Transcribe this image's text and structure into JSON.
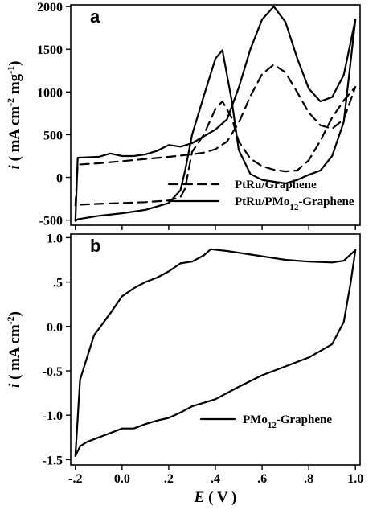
{
  "chart_data": [
    {
      "type": "line",
      "panel_label": "a",
      "xlim": [
        -0.22,
        1.02
      ],
      "ylim": [
        -560,
        2020
      ],
      "yticks": [
        -500,
        0,
        500,
        1000,
        1500,
        2000
      ],
      "ytick_labels": [
        "-500",
        "0",
        "500",
        "1000",
        "1500",
        "2000"
      ],
      "ylabel": {
        "prefix": "i",
        "rest": " ( mA cm",
        "sup1": "-2",
        "mid": " mg",
        "sup2": "-1",
        "end": ")"
      },
      "series": [
        {
          "name": "PtRu/Graphene",
          "style": "dashed",
          "x": [
            -0.2,
            -0.19,
            -0.1,
            0.0,
            0.1,
            0.2,
            0.3,
            0.35,
            0.4,
            0.45,
            0.5,
            0.55,
            0.6,
            0.65,
            0.7,
            0.75,
            0.8,
            0.85,
            0.9,
            0.95,
            1.0,
            1.0,
            0.95,
            0.9,
            0.85,
            0.8,
            0.75,
            0.7,
            0.65,
            0.6,
            0.55,
            0.5,
            0.47,
            0.43,
            0.4,
            0.35,
            0.3,
            0.27,
            0.25,
            0.2,
            0.1,
            0.0,
            -0.1,
            -0.19,
            -0.2
          ],
          "y": [
            -330,
            150,
            165,
            190,
            215,
            240,
            270,
            290,
            330,
            420,
            640,
            950,
            1210,
            1320,
            1230,
            1000,
            760,
            610,
            570,
            680,
            1060,
            1060,
            900,
            700,
            430,
            200,
            80,
            70,
            90,
            130,
            220,
            420,
            700,
            890,
            800,
            500,
            300,
            -130,
            -230,
            -270,
            -290,
            -300,
            -310,
            -320,
            -330
          ]
        },
        {
          "name": "PtRu/PMo12-Graphene",
          "style": "solid",
          "x": [
            -0.2,
            -0.19,
            -0.1,
            -0.05,
            0.0,
            0.05,
            0.1,
            0.15,
            0.2,
            0.25,
            0.3,
            0.35,
            0.4,
            0.45,
            0.5,
            0.55,
            0.6,
            0.65,
            0.7,
            0.75,
            0.8,
            0.85,
            0.9,
            0.95,
            1.0,
            1.0,
            0.95,
            0.9,
            0.85,
            0.8,
            0.75,
            0.7,
            0.6,
            0.55,
            0.5,
            0.47,
            0.43,
            0.4,
            0.35,
            0.3,
            0.27,
            0.25,
            0.2,
            0.1,
            0.0,
            -0.1,
            -0.19,
            -0.2
          ],
          "y": [
            -510,
            230,
            240,
            280,
            250,
            250,
            270,
            310,
            380,
            360,
            400,
            480,
            560,
            680,
            1050,
            1500,
            1850,
            2000,
            1820,
            1400,
            1040,
            890,
            940,
            1200,
            1850,
            1850,
            650,
            250,
            80,
            30,
            -30,
            -70,
            -30,
            40,
            320,
            900,
            1490,
            1390,
            950,
            500,
            80,
            -150,
            -300,
            -380,
            -420,
            -450,
            -490,
            -510
          ]
        }
      ],
      "legend": {
        "placement": "bottom-right",
        "entries": [
          {
            "label_main": "PtRu/Graphene",
            "style": "dashed"
          },
          {
            "label_main": "PtRu/PMo",
            "label_sub": "12",
            "label_after": "-Graphene",
            "style": "solid"
          }
        ]
      }
    },
    {
      "type": "line",
      "panel_label": "b",
      "xlim": [
        -0.22,
        1.02
      ],
      "ylim": [
        -1.56,
        1.04
      ],
      "xticks": [
        -0.2,
        0.0,
        0.2,
        0.4,
        0.6,
        0.8,
        1.0
      ],
      "xtick_labels": [
        "-.2",
        "0.0",
        ".2",
        ".4",
        ".6",
        ".8",
        "1.0"
      ],
      "yticks": [
        -1.5,
        -1.0,
        -0.5,
        0.0,
        0.5,
        1.0
      ],
      "ytick_labels": [
        "-1.5",
        "-1.0",
        "-0.5",
        "0.0",
        ".5",
        "1.0"
      ],
      "ylabel": {
        "prefix": "i",
        "rest": " ( mA cm",
        "sup1": "-2",
        "end": ")"
      },
      "xlabel": {
        "prefix": "E",
        "rest": " ( V )"
      },
      "series": [
        {
          "name": "PMo12-Graphene",
          "style": "solid",
          "x": [
            -0.2,
            -0.18,
            -0.12,
            -0.05,
            0.0,
            0.05,
            0.1,
            0.15,
            0.2,
            0.25,
            0.3,
            0.35,
            0.38,
            0.45,
            0.5,
            0.55,
            0.6,
            0.65,
            0.7,
            0.8,
            0.9,
            0.95,
            1.0,
            1.0,
            0.98,
            0.95,
            0.9,
            0.8,
            0.7,
            0.6,
            0.5,
            0.4,
            0.3,
            0.25,
            0.2,
            0.15,
            0.1,
            0.05,
            0.0,
            -0.05,
            -0.1,
            -0.15,
            -0.18,
            -0.2
          ],
          "y": [
            -1.46,
            -0.6,
            -0.1,
            0.15,
            0.34,
            0.43,
            0.5,
            0.55,
            0.62,
            0.71,
            0.73,
            0.8,
            0.87,
            0.85,
            0.83,
            0.81,
            0.79,
            0.77,
            0.75,
            0.73,
            0.72,
            0.74,
            0.86,
            0.86,
            0.5,
            0.05,
            -0.2,
            -0.35,
            -0.45,
            -0.55,
            -0.68,
            -0.82,
            -0.9,
            -0.97,
            -1.03,
            -1.06,
            -1.1,
            -1.15,
            -1.15,
            -1.2,
            -1.25,
            -1.3,
            -1.35,
            -1.46
          ]
        }
      ],
      "legend": {
        "placement": "bottom-right",
        "entries": [
          {
            "label_main": "PMo",
            "label_sub": "12",
            "label_after": "-Graphene",
            "style": "solid"
          }
        ]
      }
    }
  ]
}
